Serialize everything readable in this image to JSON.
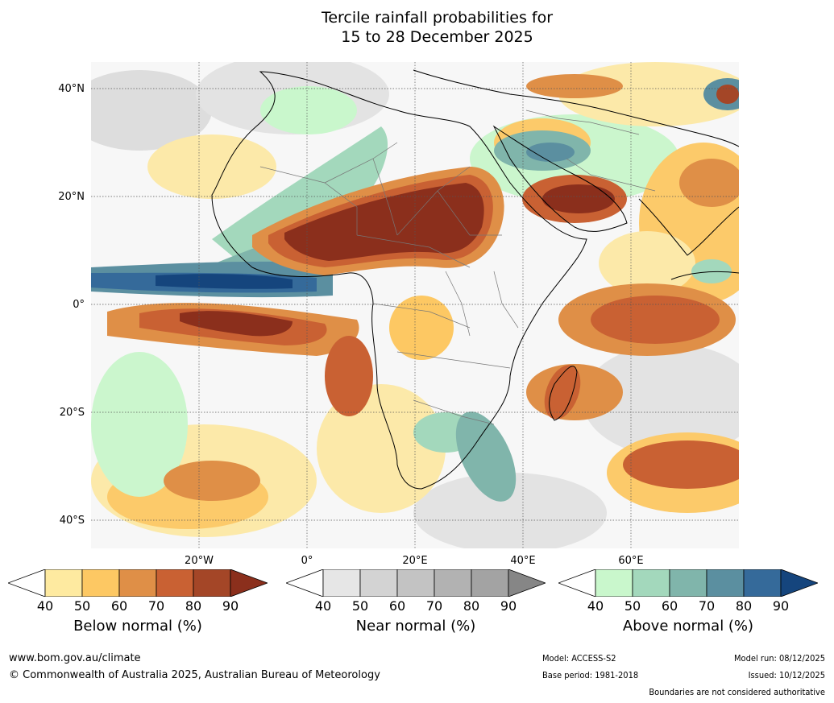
{
  "title": {
    "line1": "Tercile rainfall probabilities for",
    "line2": "15 to 28 December 2025"
  },
  "map": {
    "lat_labels": [
      "40°N",
      "20°N",
      "0°",
      "20°S",
      "40°S"
    ],
    "lon_labels": [
      "20°W",
      "0°",
      "20°E",
      "40°E",
      "60°E"
    ],
    "region": "Africa"
  },
  "colorbars": [
    {
      "label": "Below normal (%)",
      "ticks": [
        "40",
        "50",
        "60",
        "70",
        "80",
        "90"
      ],
      "colors": [
        "#ffffff",
        "#feeaa0",
        "#fdc863",
        "#df8f47",
        "#c96133",
        "#a44627",
        "#8b2f1c"
      ]
    },
    {
      "label": "Near normal (%)",
      "ticks": [
        "40",
        "50",
        "60",
        "70",
        "80",
        "90"
      ],
      "colors": [
        "#ffffff",
        "#e6e6e6",
        "#d3d3d3",
        "#c3c3c3",
        "#b2b2b2",
        "#a3a3a3",
        "#868686"
      ]
    },
    {
      "label": "Above normal (%)",
      "ticks": [
        "40",
        "50",
        "60",
        "70",
        "80",
        "90"
      ],
      "colors": [
        "#ffffff",
        "#c9f7cc",
        "#a3d8bc",
        "#80b5ab",
        "#5b8fa0",
        "#356a9a",
        "#15457d"
      ]
    }
  ],
  "footer": {
    "website": "www.bom.gov.au/climate",
    "copyright": "© Commonwealth of Australia 2025, Australian Bureau of Meteorology",
    "model": "Model: ACCESS-S2",
    "base_period": "Base period: 1981-2018",
    "model_run": "Model run: 08/12/2025",
    "issued": "Issued: 10/12/2025",
    "disclaimer": "Boundaries are not considered authoritative"
  }
}
